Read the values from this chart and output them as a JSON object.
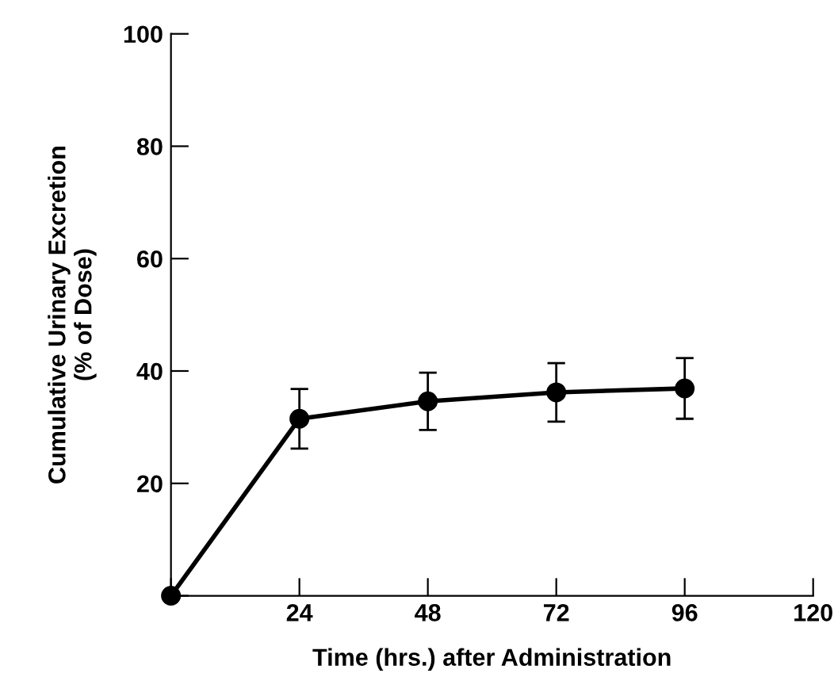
{
  "chart_data": {
    "type": "line",
    "xlabel": "Time (hrs.) after Administration",
    "ylabel": "Cumulative Urinary Excretion\n(% of Dose)",
    "x": [
      0,
      24,
      48,
      72,
      96
    ],
    "series": [
      {
        "color": "#000000",
        "values": [
          0,
          31.5,
          34.6,
          36.2,
          36.9
        ],
        "errors": [
          null,
          5.3,
          5.1,
          5.2,
          5.4
        ]
      }
    ],
    "xlim": [
      0,
      120
    ],
    "xticks": [
      {
        "value": 0,
        "label": null
      },
      24,
      48,
      72,
      96,
      120
    ],
    "ylim": [
      0,
      100
    ],
    "yticks": [
      {
        "value": 0,
        "label": null
      },
      20,
      40,
      60,
      80,
      100
    ],
    "marker": "circle",
    "line_style": "solid",
    "grid": false,
    "legend": false
  }
}
